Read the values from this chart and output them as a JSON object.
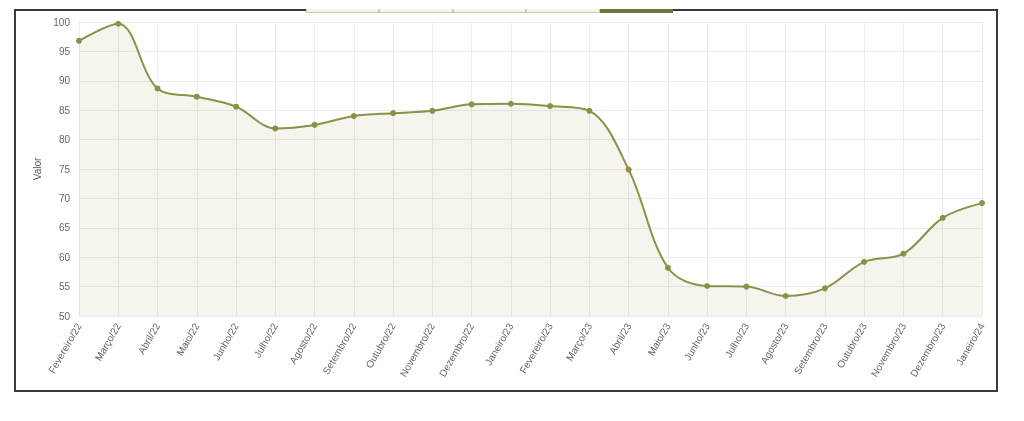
{
  "chart_data": {
    "type": "area",
    "ylabel": "Valor",
    "categories": [
      "Fevereiro/22",
      "Março/22",
      "Abril/22",
      "Maio/22",
      "Junho/22",
      "Julho/22",
      "Agosto/22",
      "Setembro/22",
      "Outubro/22",
      "Novembro/22",
      "Dezembro/22",
      "Janeiro/23",
      "Fevereiro/23",
      "Março/23",
      "Abril/23",
      "Maio/23",
      "Junho/23",
      "Julho/23",
      "Agosto/23",
      "Setembro/23",
      "Outubro/23",
      "Novembro/23",
      "Dezembro/23",
      "Janeiro/24"
    ],
    "values": [
      96.8,
      99.7,
      88.7,
      87.3,
      85.6,
      81.9,
      82.5,
      84.0,
      84.5,
      84.9,
      86.0,
      86.1,
      85.7,
      84.9,
      74.9,
      58.2,
      55.1,
      55.0,
      53.4,
      54.7,
      59.2,
      60.6,
      66.7,
      69.2
    ],
    "color": "#8c9048",
    "ylim": [
      50,
      100
    ],
    "yticks": [
      50,
      55,
      60,
      65,
      70,
      75,
      80,
      85,
      90,
      95,
      100
    ],
    "grid": true,
    "marker": "circle",
    "line_style": "solid"
  }
}
